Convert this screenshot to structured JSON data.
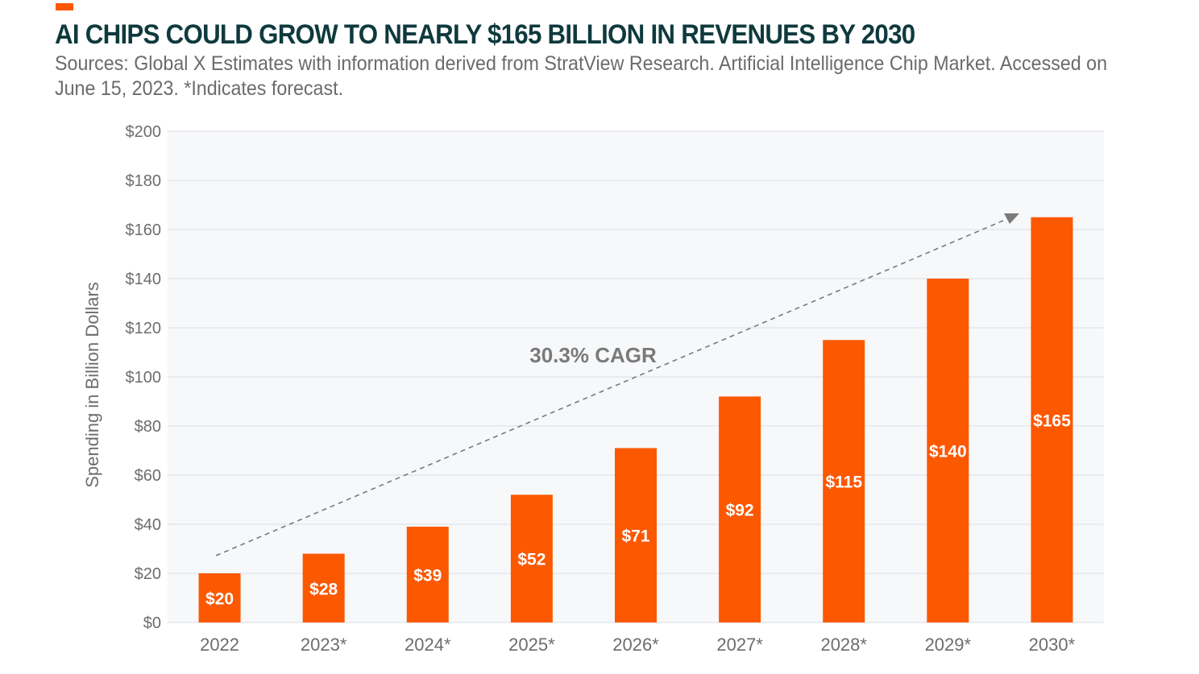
{
  "colors": {
    "bar": "#fc5800",
    "title": "#0f3a3d",
    "text": "#6b6b6b",
    "plot_bg": "#f7f8fa",
    "grid": "#e2e3e6",
    "arrow": "#7a7a7a"
  },
  "chart_data": {
    "type": "bar",
    "title": "AI CHIPS COULD GROW TO NEARLY $165 BILLION IN REVENUES BY 2030",
    "subtitle": "Sources: Global X Estimates with information derived from StratView Research. Artificial Intelligence Chip Market. Accessed on June 15, 2023. *Indicates forecast.",
    "xlabel": "",
    "ylabel": "Spending in Billion Dollars",
    "categories": [
      "2022",
      "2023*",
      "2024*",
      "2025*",
      "2026*",
      "2027*",
      "2028*",
      "2029*",
      "2030*"
    ],
    "values": [
      20,
      28,
      39,
      52,
      71,
      92,
      115,
      140,
      165
    ],
    "data_labels": [
      "$20",
      "$28",
      "$39",
      "$52",
      "$71",
      "$92",
      "$115",
      "$140",
      "$165"
    ],
    "ylim": [
      0,
      200
    ],
    "yticks": [
      0,
      20,
      40,
      60,
      80,
      100,
      120,
      140,
      160,
      180,
      200
    ],
    "ytick_labels": [
      "$0",
      "$20",
      "$40",
      "$60",
      "$80",
      "$100",
      "$120",
      "$140",
      "$160",
      "$180",
      "$200"
    ],
    "grid": true,
    "annotation": {
      "text": "30.3% CAGR",
      "style": "dashed arrow trend from 2022 to 2030"
    }
  }
}
